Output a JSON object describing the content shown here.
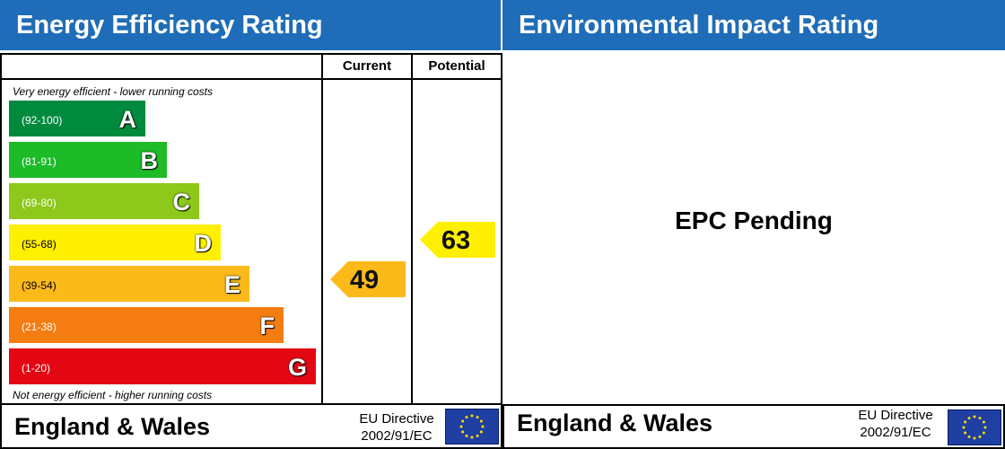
{
  "left_header": "Energy Efficiency Rating",
  "right_header": "Environmental Impact Rating",
  "chart_data": {
    "type": "bar",
    "title": "Energy Efficiency Rating",
    "columns": [
      "Current",
      "Potential"
    ],
    "top_note": "Very energy efficient - lower running costs",
    "bottom_note": "Not energy efficient - higher running costs",
    "bands": [
      {
        "letter": "A",
        "range": "(92-100)",
        "color": "#008a3e"
      },
      {
        "letter": "B",
        "range": "(81-91)",
        "color": "#1dbb27"
      },
      {
        "letter": "C",
        "range": "(69-80)",
        "color": "#8dc81a"
      },
      {
        "letter": "D",
        "range": "(55-68)",
        "color": "#ffef00"
      },
      {
        "letter": "E",
        "range": "(39-54)",
        "color": "#fcba1a"
      },
      {
        "letter": "F",
        "range": "(21-38)",
        "color": "#f47c11"
      },
      {
        "letter": "G",
        "range": "(1-20)",
        "color": "#e30713"
      }
    ],
    "current": {
      "value": 49,
      "band": "E",
      "color": "#fcba1a"
    },
    "potential": {
      "value": 63,
      "band": "D",
      "color": "#ffef00"
    }
  },
  "environmental": {
    "status": "EPC Pending"
  },
  "footer": {
    "region": "England & Wales",
    "directive_line1": "EU Directive",
    "directive_line2": "2002/91/EC"
  },
  "colors": {
    "header_blue": "#1f6db8",
    "eu_flag_blue": "#1f3fa3",
    "eu_star_yellow": "#ffdd00"
  }
}
